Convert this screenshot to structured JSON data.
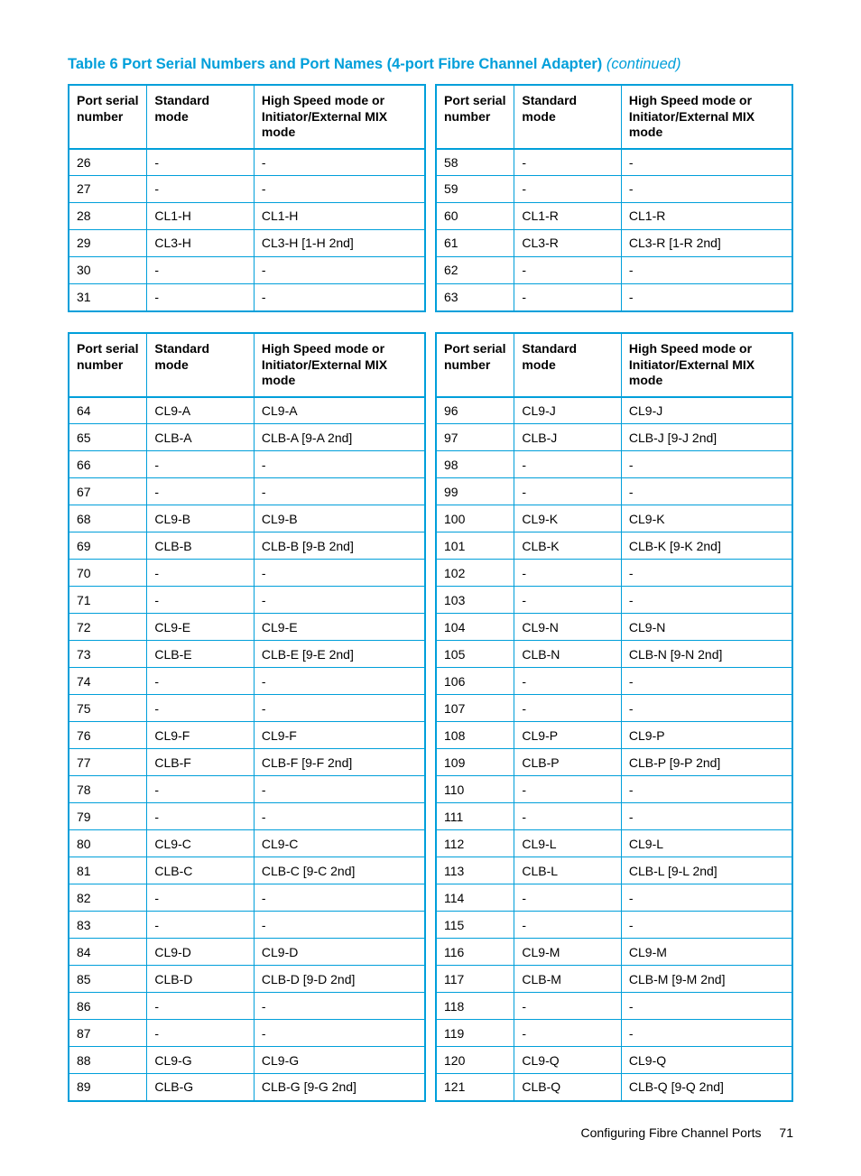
{
  "colors": {
    "accent": "#009fda",
    "text": "#000000",
    "background": "#ffffff"
  },
  "title": {
    "main": "Table 6 Port Serial Numbers and Port Names (4-port Fibre Channel Adapter)",
    "continued": "(continued)"
  },
  "columns": {
    "psn": "Port serial number",
    "std": "Standard mode",
    "hs": "High Speed mode or Initiator/External MIX mode"
  },
  "table1": {
    "left": [
      {
        "psn": "26",
        "std": "-",
        "hs": "-"
      },
      {
        "psn": "27",
        "std": "-",
        "hs": "-"
      },
      {
        "psn": "28",
        "std": "CL1-H",
        "hs": "CL1-H"
      },
      {
        "psn": "29",
        "std": "CL3-H",
        "hs": "CL3-H [1-H 2nd]"
      },
      {
        "psn": "30",
        "std": "-",
        "hs": "-"
      },
      {
        "psn": "31",
        "std": "-",
        "hs": "-"
      }
    ],
    "right": [
      {
        "psn": "58",
        "std": "-",
        "hs": "-"
      },
      {
        "psn": "59",
        "std": "-",
        "hs": "-"
      },
      {
        "psn": "60",
        "std": "CL1-R",
        "hs": "CL1-R"
      },
      {
        "psn": "61",
        "std": "CL3-R",
        "hs": "CL3-R [1-R 2nd]"
      },
      {
        "psn": "62",
        "std": "-",
        "hs": "-"
      },
      {
        "psn": "63",
        "std": "-",
        "hs": "-"
      }
    ]
  },
  "table2": {
    "left": [
      {
        "psn": "64",
        "std": "CL9-A",
        "hs": "CL9-A"
      },
      {
        "psn": "65",
        "std": "CLB-A",
        "hs": "CLB-A [9-A 2nd]"
      },
      {
        "psn": "66",
        "std": "-",
        "hs": "-"
      },
      {
        "psn": "67",
        "std": "-",
        "hs": "-"
      },
      {
        "psn": "68",
        "std": "CL9-B",
        "hs": "CL9-B"
      },
      {
        "psn": "69",
        "std": "CLB-B",
        "hs": "CLB-B [9-B 2nd]"
      },
      {
        "psn": "70",
        "std": "-",
        "hs": "-"
      },
      {
        "psn": "71",
        "std": "-",
        "hs": "-"
      },
      {
        "psn": "72",
        "std": "CL9-E",
        "hs": "CL9-E"
      },
      {
        "psn": "73",
        "std": "CLB-E",
        "hs": "CLB-E [9-E 2nd]"
      },
      {
        "psn": "74",
        "std": "-",
        "hs": "-"
      },
      {
        "psn": "75",
        "std": "-",
        "hs": "-"
      },
      {
        "psn": "76",
        "std": "CL9-F",
        "hs": "CL9-F"
      },
      {
        "psn": "77",
        "std": "CLB-F",
        "hs": "CLB-F [9-F 2nd]"
      },
      {
        "psn": "78",
        "std": "-",
        "hs": "-"
      },
      {
        "psn": "79",
        "std": "-",
        "hs": "-"
      },
      {
        "psn": "80",
        "std": "CL9-C",
        "hs": "CL9-C"
      },
      {
        "psn": "81",
        "std": "CLB-C",
        "hs": "CLB-C [9-C 2nd]"
      },
      {
        "psn": "82",
        "std": "-",
        "hs": "-"
      },
      {
        "psn": "83",
        "std": "-",
        "hs": "-"
      },
      {
        "psn": "84",
        "std": "CL9-D",
        "hs": "CL9-D"
      },
      {
        "psn": "85",
        "std": "CLB-D",
        "hs": "CLB-D [9-D 2nd]"
      },
      {
        "psn": "86",
        "std": "-",
        "hs": "-"
      },
      {
        "psn": "87",
        "std": "-",
        "hs": "-"
      },
      {
        "psn": "88",
        "std": "CL9-G",
        "hs": "CL9-G"
      },
      {
        "psn": "89",
        "std": "CLB-G",
        "hs": "CLB-G [9-G 2nd]"
      }
    ],
    "right": [
      {
        "psn": "96",
        "std": "CL9-J",
        "hs": "CL9-J"
      },
      {
        "psn": "97",
        "std": "CLB-J",
        "hs": "CLB-J [9-J 2nd]"
      },
      {
        "psn": "98",
        "std": "-",
        "hs": "-"
      },
      {
        "psn": "99",
        "std": "-",
        "hs": "-"
      },
      {
        "psn": "100",
        "std": "CL9-K",
        "hs": "CL9-K"
      },
      {
        "psn": "101",
        "std": "CLB-K",
        "hs": "CLB-K [9-K 2nd]"
      },
      {
        "psn": "102",
        "std": "-",
        "hs": "-"
      },
      {
        "psn": "103",
        "std": "-",
        "hs": "-"
      },
      {
        "psn": "104",
        "std": "CL9-N",
        "hs": "CL9-N"
      },
      {
        "psn": "105",
        "std": "CLB-N",
        "hs": "CLB-N [9-N 2nd]"
      },
      {
        "psn": "106",
        "std": "-",
        "hs": "-"
      },
      {
        "psn": "107",
        "std": "-",
        "hs": "-"
      },
      {
        "psn": "108",
        "std": "CL9-P",
        "hs": "CL9-P"
      },
      {
        "psn": "109",
        "std": "CLB-P",
        "hs": "CLB-P [9-P 2nd]"
      },
      {
        "psn": "110",
        "std": "-",
        "hs": "-"
      },
      {
        "psn": "111",
        "std": "-",
        "hs": "-"
      },
      {
        "psn": "112",
        "std": "CL9-L",
        "hs": "CL9-L"
      },
      {
        "psn": "113",
        "std": "CLB-L",
        "hs": "CLB-L [9-L 2nd]"
      },
      {
        "psn": "114",
        "std": "-",
        "hs": "-"
      },
      {
        "psn": "115",
        "std": "-",
        "hs": "-"
      },
      {
        "psn": "116",
        "std": "CL9-M",
        "hs": "CL9-M"
      },
      {
        "psn": "117",
        "std": "CLB-M",
        "hs": "CLB-M [9-M 2nd]"
      },
      {
        "psn": "118",
        "std": "-",
        "hs": "-"
      },
      {
        "psn": "119",
        "std": "-",
        "hs": "-"
      },
      {
        "psn": "120",
        "std": "CL9-Q",
        "hs": "CL9-Q"
      },
      {
        "psn": "121",
        "std": "CLB-Q",
        "hs": "CLB-Q [9-Q 2nd]"
      }
    ]
  },
  "footer": {
    "section": "Configuring Fibre Channel Ports",
    "page": "71"
  }
}
